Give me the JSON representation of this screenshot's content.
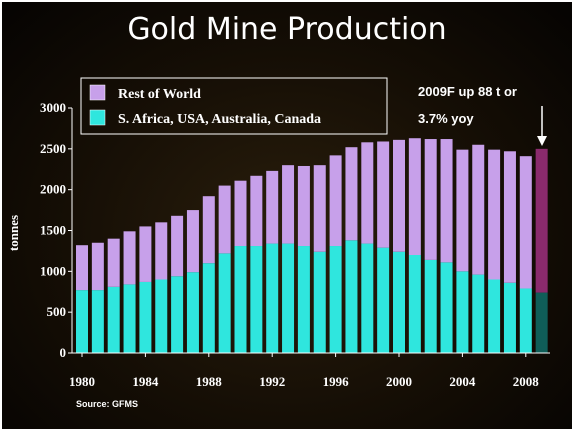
{
  "colors": {
    "rest_of_world": "#c7a0ea",
    "core_countries": "#2fe6de",
    "forecast_top": "#8a2a6c",
    "forecast_bottom": "#0f5e58",
    "axis": "#ffffff"
  },
  "chart_data": {
    "type": "bar",
    "stacked": true,
    "title": "Gold Mine Production",
    "ylabel": "tonnes",
    "ylim": [
      0,
      3000
    ],
    "yticks": [
      "0",
      "500",
      "1000",
      "1500",
      "2000",
      "2500",
      "3000"
    ],
    "xticks": [
      "1980",
      "1984",
      "1988",
      "1992",
      "1996",
      "2000",
      "2004",
      "2008"
    ],
    "categories": [
      "1980",
      "1981",
      "1982",
      "1983",
      "1984",
      "1985",
      "1986",
      "1987",
      "1988",
      "1989",
      "1990",
      "1991",
      "1992",
      "1993",
      "1994",
      "1995",
      "1996",
      "1997",
      "1998",
      "1999",
      "2000",
      "2001",
      "2002",
      "2003",
      "2004",
      "2005",
      "2006",
      "2007",
      "2008",
      "2009F"
    ],
    "series": [
      {
        "name": "S. Africa, USA, Australia, Canada",
        "values": [
          770,
          770,
          810,
          840,
          870,
          900,
          940,
          990,
          1100,
          1220,
          1310,
          1310,
          1340,
          1340,
          1310,
          1240,
          1310,
          1380,
          1340,
          1290,
          1240,
          1200,
          1140,
          1110,
          1000,
          960,
          900,
          860,
          790,
          740
        ]
      },
      {
        "name": "Rest of World",
        "values": [
          550,
          580,
          590,
          650,
          680,
          700,
          740,
          760,
          820,
          830,
          800,
          860,
          890,
          960,
          980,
          1060,
          1110,
          1140,
          1240,
          1300,
          1370,
          1430,
          1480,
          1510,
          1490,
          1590,
          1590,
          1610,
          1620,
          1760
        ]
      }
    ],
    "legend": {
      "position": "top-left",
      "items": [
        "Rest of World",
        "S. Africa, USA, Australia, Canada"
      ]
    },
    "annotation": {
      "line1": "2009F up 88 t or",
      "line2": "3.7% yoy"
    },
    "source": "Source: GFMS",
    "grid": false
  }
}
